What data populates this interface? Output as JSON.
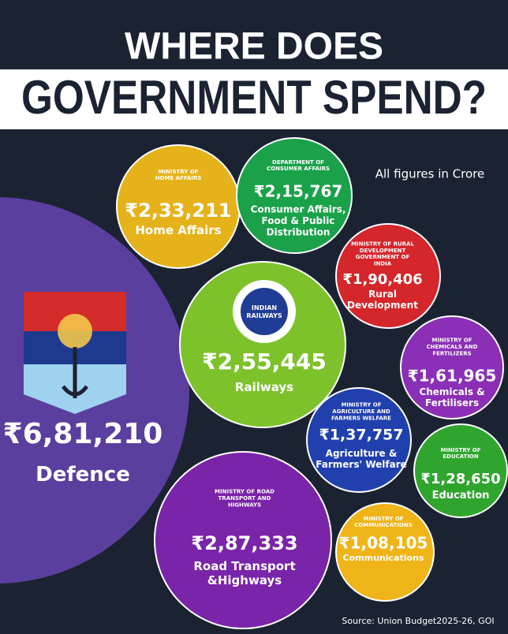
{
  "chart_data": {
    "type": "bubble",
    "title_lines": [
      "WHERE DOES",
      "GOVERNMENT SPEND?"
    ],
    "note": "All figures in Crore",
    "source": "Source:  Union Budget2025-26, GOI",
    "categories": [
      "Defence",
      "Home Affairs",
      "Consumer Affairs, Food & Public Distribution",
      "Rural Development",
      "Railways",
      "Chemicals & Fertilisers",
      "Agriculture & Farmers' Welfare",
      "Education",
      "Road Transport &Highways",
      "Communications"
    ],
    "ministries": [
      null,
      "MINISTRY OF HOME AFFAIRS",
      "DEPARTMENT OF CONSUMER AFFAIRS",
      "MINISTRY OF RURAL DEVELOPMENT GOVERNMENT OF INDIA",
      "INDIAN RAILWAYS",
      "MINISTRY OF CHEMICALS AND FERTILIZERS",
      "MINISTRY OF AGRICULTURE AND FARMERS WELFARE",
      "MINISTRY OF EDUCATION",
      "MINISTRY OF ROAD TRANSPORT AND HIGHWAYS",
      "MINISTRY OF COMMUNICATIONS"
    ],
    "values": [
      681210,
      233211,
      215767,
      190406,
      255445,
      161965,
      137757,
      128650,
      287333,
      108105
    ],
    "value_labels": [
      "₹6,81,210",
      "₹2,33,211",
      "₹2,15,767",
      "₹1,90,406",
      "₹2,55,445",
      "₹1,61,965",
      "₹1,37,757",
      "₹1,28,650",
      "₹2,87,333",
      "₹1,08,105"
    ],
    "colors": [
      "#5a3f9e",
      "#e6b21a",
      "#1ba14a",
      "#d4262b",
      "#7dc22b",
      "#8a2fb6",
      "#2040ad",
      "#2fa52e",
      "#7a24aa",
      "#efb418"
    ]
  }
}
